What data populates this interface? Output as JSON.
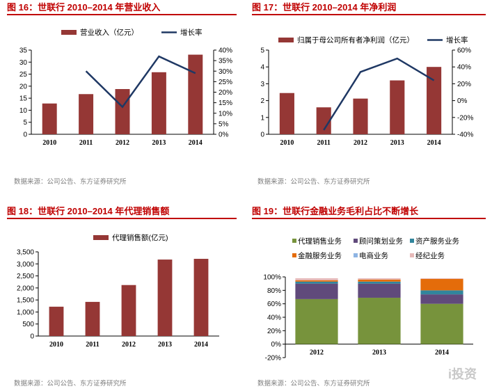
{
  "panels": {
    "p16": {
      "title": "图 16：世联行 2010–2014 年营业收入",
      "source": "数据来源：公司公告、东方证券研究所"
    },
    "p17": {
      "title": "图 17：世联行 2010–2014 年净利润",
      "source": "数据来源：公司公告、东方证券研究所"
    },
    "p18": {
      "title": "图 18：世联行 2010–2014 年代理销售额",
      "source": "数据来源：公司公告、东方证券研究所"
    },
    "p19": {
      "title": "图 19：世联行金融业务毛利占比不断增长",
      "source": "数据来源：公司公告、东方证券研究所"
    }
  },
  "watermark": "i投资",
  "colors": {
    "bar": "#953735",
    "line": "#1f3864",
    "title": "#c00000"
  },
  "chart_data": [
    {
      "type": "bar",
      "id": "c16",
      "categories": [
        "2010",
        "2011",
        "2012",
        "2013",
        "2014"
      ],
      "series": [
        {
          "name": "营业收入（亿元）",
          "type": "bar",
          "axis": "left",
          "values": [
            12.8,
            16.7,
            18.8,
            25.8,
            33.1
          ]
        },
        {
          "name": "增长率",
          "type": "line",
          "axis": "right",
          "values": [
            null,
            30,
            13,
            37,
            29
          ]
        }
      ],
      "ylim": [
        0,
        35
      ],
      "yticks": [
        "0",
        "5",
        "10",
        "15",
        "20",
        "25",
        "30",
        "35"
      ],
      "y2lim": [
        0,
        40
      ],
      "y2ticks": [
        "0%",
        "5%",
        "10%",
        "15%",
        "20%",
        "25%",
        "30%",
        "35%",
        "40%"
      ]
    },
    {
      "type": "bar",
      "id": "c17",
      "categories": [
        "2010",
        "2011",
        "2012",
        "2013",
        "2014"
      ],
      "series": [
        {
          "name": "归属于母公司所有者净利润（亿元）",
          "type": "bar",
          "axis": "left",
          "values": [
            2.45,
            1.6,
            2.12,
            3.2,
            4.0
          ]
        },
        {
          "name": "增长率",
          "type": "line",
          "axis": "right",
          "values": [
            null,
            -35,
            34,
            50,
            24
          ]
        }
      ],
      "ylim": [
        0,
        5
      ],
      "yticks": [
        "0",
        "1",
        "2",
        "3",
        "4",
        "5"
      ],
      "y2lim": [
        -40,
        60
      ],
      "y2ticks": [
        "-40%",
        "-20%",
        "0%",
        "20%",
        "40%",
        "60%"
      ]
    },
    {
      "type": "bar",
      "id": "c18",
      "categories": [
        "2010",
        "2011",
        "2012",
        "2013",
        "2014"
      ],
      "series": [
        {
          "name": "代理销售额(亿元)",
          "type": "bar",
          "axis": "left",
          "values": [
            1220,
            1420,
            2120,
            3180,
            3210
          ]
        }
      ],
      "ylim": [
        0,
        3500
      ],
      "yticks": [
        "0",
        "500",
        "1,000",
        "1,500",
        "2,000",
        "2,500",
        "3,000",
        "3,500"
      ]
    },
    {
      "type": "bar",
      "id": "c19",
      "stacked": true,
      "categories": [
        "2012",
        "2013",
        "2014"
      ],
      "series": [
        {
          "name": "代理销售业务",
          "color": "#77933c",
          "values": [
            67,
            69,
            60
          ]
        },
        {
          "name": "顾问策划业务",
          "color": "#604a7b",
          "values": [
            23,
            21,
            14
          ]
        },
        {
          "name": "资产服务业务",
          "color": "#31859c",
          "values": [
            3,
            3,
            6
          ]
        },
        {
          "name": "金融服务业务",
          "color": "#e46c0a",
          "values": [
            2,
            3,
            17
          ]
        },
        {
          "name": "电商业务",
          "color": "#8eb4e3",
          "values": [
            0,
            0,
            0
          ]
        },
        {
          "name": "经纪业务",
          "color": "#e6b9b8",
          "values": [
            3,
            2,
            1
          ]
        }
      ],
      "ylim": [
        -20,
        100
      ],
      "yticks": [
        "-20%",
        "0%",
        "20%",
        "40%",
        "60%",
        "80%",
        "100%"
      ]
    }
  ]
}
